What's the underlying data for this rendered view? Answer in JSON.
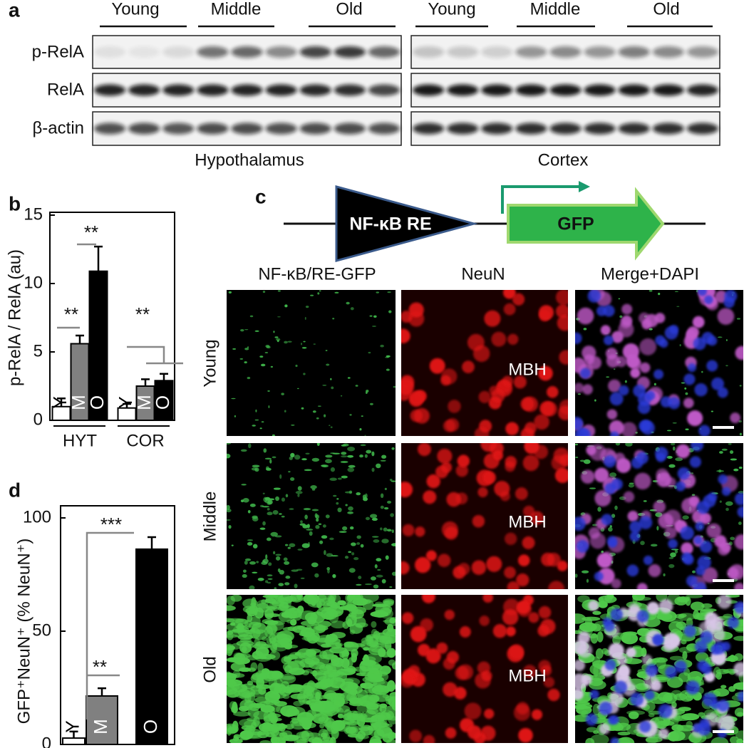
{
  "panel_a": {
    "label": "a",
    "rows": [
      "p-RelA",
      "RelA",
      "β-actin"
    ],
    "left": {
      "groups": [
        "Young",
        "Middle",
        "Old"
      ],
      "tissue": "Hypothalamus"
    },
    "right": {
      "groups": [
        "Young",
        "Middle",
        "Old"
      ],
      "tissue": "Cortex"
    }
  },
  "chart_data": [
    {
      "type": "bar",
      "panel": "b",
      "ylabel": "p-RelA / RelA (au)",
      "ylim": [
        0,
        15
      ],
      "yticks": [
        0,
        5,
        10,
        15
      ],
      "categories": [
        "HYT",
        "COR"
      ],
      "series": [
        {
          "name": "Y",
          "color": "#ffffff",
          "values": [
            1.0,
            0.9
          ],
          "errors": [
            0.6,
            0.3
          ]
        },
        {
          "name": "M",
          "color": "#808080",
          "values": [
            5.6,
            2.5
          ],
          "errors": [
            0.6,
            0.5
          ]
        },
        {
          "name": "O",
          "color": "#000000",
          "values": [
            10.9,
            2.9
          ],
          "errors": [
            1.8,
            0.5
          ]
        }
      ],
      "annotations": [
        "**",
        "**",
        "**"
      ]
    },
    {
      "type": "bar",
      "panel": "d",
      "ylabel": "GFP⁺NeuN⁺ (% NeuN⁺)",
      "ylim": [
        0,
        100
      ],
      "yticks": [
        0,
        50,
        100
      ],
      "categories": [
        "Y",
        "M",
        "O"
      ],
      "values": [
        2.8,
        21.4,
        86.2
      ],
      "errors": [
        2.9,
        3.4,
        5.3
      ],
      "colors": [
        "#ffffff",
        "#808080",
        "#000000"
      ],
      "annotations": [
        "***",
        "**"
      ]
    }
  ],
  "panel_c": {
    "label": "c",
    "construct": {
      "element": "NF-κB RE",
      "reporter": "GFP"
    },
    "columns": [
      "NF-κB/RE-GFP",
      "NeuN",
      "Merge+DAPI"
    ],
    "rows": [
      "Young",
      "Middle",
      "Old"
    ],
    "region": "MBH"
  }
}
